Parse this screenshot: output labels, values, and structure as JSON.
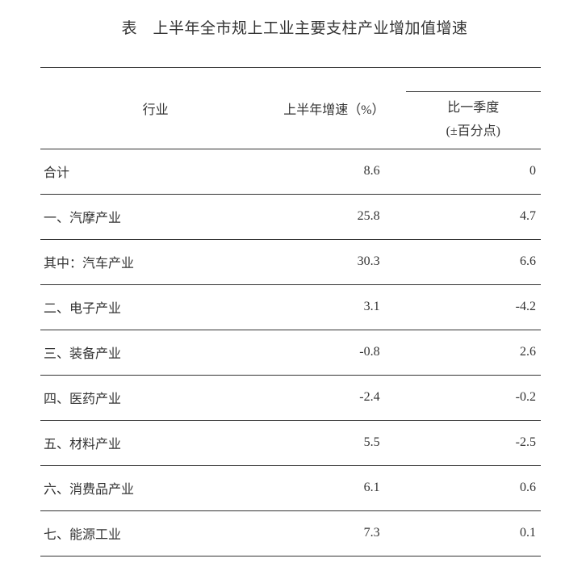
{
  "title": "表　上半年全市规上工业主要支柱产业增加值增速",
  "table": {
    "type": "table",
    "background_color": "#ffffff",
    "border_color": "#333333",
    "text_color": "#333333",
    "font_family": "SimSun",
    "title_fontsize": 19,
    "body_fontsize": 16,
    "columns": {
      "industry": {
        "label": "行业",
        "align": "left",
        "width_pct": 46
      },
      "growth": {
        "label": "上半年增速（%）",
        "align": "right",
        "width_pct": 27
      },
      "vs_q1": {
        "label_line1": "比一季度",
        "label_line2": "(±百分点)",
        "align": "right",
        "width_pct": 27
      }
    },
    "rows": [
      {
        "industry": "合计",
        "growth": "8.6",
        "vs_q1": "0"
      },
      {
        "industry": "一、汽摩产业",
        "growth": "25.8",
        "vs_q1": "4.7"
      },
      {
        "industry": "其中：汽车产业",
        "growth": "30.3",
        "vs_q1": "6.6"
      },
      {
        "industry": "二、电子产业",
        "growth": "3.1",
        "vs_q1": "-4.2"
      },
      {
        "industry": "三、装备产业",
        "growth": "-0.8",
        "vs_q1": "2.6"
      },
      {
        "industry": "四、医药产业",
        "growth": "-2.4",
        "vs_q1": "-0.2"
      },
      {
        "industry": "五、材料产业",
        "growth": "5.5",
        "vs_q1": "-2.5"
      },
      {
        "industry": "六、消费品产业",
        "growth": "6.1",
        "vs_q1": "0.6"
      },
      {
        "industry": "七、能源工业",
        "growth": "7.3",
        "vs_q1": "0.1"
      }
    ]
  }
}
